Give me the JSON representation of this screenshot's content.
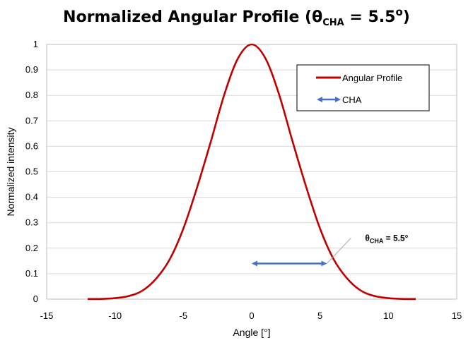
{
  "chart_data": {
    "type": "line",
    "title": {
      "main": "Normalized Angular Profile (θ",
      "subscript": "CHA",
      "equals": " = 5.5",
      "superscript": "o",
      "close": ")"
    },
    "xlabel": "Angle [°]",
    "ylabel": "Normalized intensity",
    "xlim": [
      -15,
      15
    ],
    "ylim": [
      0,
      1
    ],
    "x_ticks": [
      "-15",
      "-10",
      "-5",
      "0",
      "5",
      "10",
      "15"
    ],
    "y_ticks": [
      "0",
      "0.1",
      "0.2",
      "0.3",
      "0.4",
      "0.5",
      "0.6",
      "0.7",
      "0.8",
      "0.9",
      "1"
    ],
    "grid": "horizontal",
    "legend_position": "top-right",
    "series": [
      {
        "name": "Angular Profile",
        "color": "#c00000",
        "x": [
          -12,
          -11,
          -10,
          -9,
          -8,
          -7,
          -6,
          -5,
          -4,
          -3,
          -2,
          -1,
          0,
          1,
          2,
          3,
          4,
          5,
          6,
          7,
          8,
          9,
          10,
          11,
          12
        ],
        "y": [
          0.0005,
          0.001,
          0.004,
          0.012,
          0.033,
          0.08,
          0.156,
          0.277,
          0.438,
          0.617,
          0.804,
          0.946,
          1.0,
          0.946,
          0.804,
          0.617,
          0.438,
          0.277,
          0.156,
          0.08,
          0.033,
          0.012,
          0.004,
          0.001,
          0.0005
        ]
      }
    ],
    "cha_marker": {
      "name": "CHA",
      "color": "#4472c4",
      "x_start": 0,
      "x_end": 5.5,
      "y": 0.14
    },
    "annotation": {
      "prefix": "θ",
      "subscript": "CHA",
      "suffix": " = 5.5°",
      "points_to": {
        "x": 5.5,
        "y": 0.14
      }
    }
  }
}
